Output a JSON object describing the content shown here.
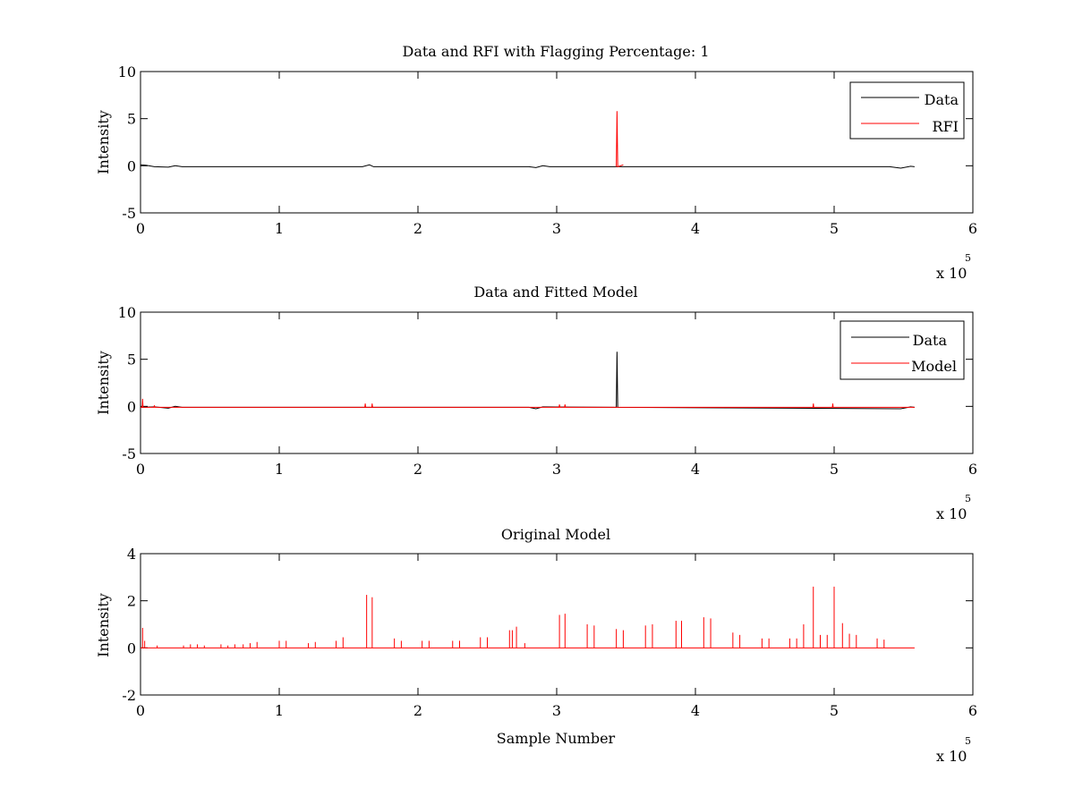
{
  "chart_data": [
    {
      "type": "line",
      "title": "Data and RFI with Flagging Percentage: 1",
      "xlabel": "",
      "ylabel": "Intensity",
      "xlim": [
        0,
        600000
      ],
      "ylim": [
        -5,
        10
      ],
      "x_ticks": [
        "0",
        "1",
        "2",
        "3",
        "4",
        "5",
        "6"
      ],
      "y_ticks": [
        "-5",
        "0",
        "5",
        "10"
      ],
      "x_exponent": "x 10",
      "x_exponent_power": "5",
      "grid": false,
      "legend_position": "top-right",
      "series": [
        {
          "name": "Data",
          "color": "#000000",
          "baseline": -0.1,
          "points": [
            [
              0,
              0.1
            ],
            [
              4000,
              0.05
            ],
            [
              10000,
              -0.1
            ],
            [
              20000,
              -0.15
            ],
            [
              25000,
              0.0
            ],
            [
              30000,
              -0.1
            ],
            [
              160000,
              -0.1
            ],
            [
              165000,
              0.1
            ],
            [
              168000,
              -0.1
            ],
            [
              280000,
              -0.1
            ],
            [
              285000,
              -0.2
            ],
            [
              290000,
              0.0
            ],
            [
              295000,
              -0.1
            ],
            [
              540000,
              -0.1
            ],
            [
              548000,
              -0.25
            ],
            [
              555000,
              -0.05
            ],
            [
              558000,
              -0.1
            ]
          ]
        },
        {
          "name": "RFI",
          "color": "#ff0000",
          "baseline": -0.1,
          "points": [
            [
              343000,
              -0.1
            ],
            [
              343500,
              5.8
            ],
            [
              344000,
              -0.1
            ],
            [
              348000,
              0.1
            ]
          ]
        }
      ]
    },
    {
      "type": "line",
      "title": "Data and Fitted Model",
      "xlabel": "",
      "ylabel": "Intensity",
      "xlim": [
        0,
        600000
      ],
      "ylim": [
        -5,
        10
      ],
      "x_ticks": [
        "0",
        "1",
        "2",
        "3",
        "4",
        "5",
        "6"
      ],
      "y_ticks": [
        "-5",
        "0",
        "5",
        "10"
      ],
      "x_exponent": "x 10",
      "x_exponent_power": "5",
      "grid": false,
      "legend_position": "top-right",
      "series": [
        {
          "name": "Data",
          "color": "#000000",
          "baseline": -0.1,
          "points": [
            [
              0,
              -0.1
            ],
            [
              10000,
              -0.05
            ],
            [
              20000,
              -0.2
            ],
            [
              25000,
              0.0
            ],
            [
              30000,
              -0.1
            ],
            [
              280000,
              -0.1
            ],
            [
              285000,
              -0.25
            ],
            [
              290000,
              -0.05
            ],
            [
              343000,
              -0.1
            ],
            [
              343500,
              5.8
            ],
            [
              344000,
              -0.1
            ],
            [
              548000,
              -0.25
            ],
            [
              555000,
              -0.05
            ]
          ]
        },
        {
          "name": "Model",
          "color": "#ff0000",
          "baseline": -0.1,
          "points": [
            [
              1500,
              0.8
            ],
            [
              3000,
              -0.1
            ],
            [
              10000,
              0.1
            ],
            [
              162000,
              0.3
            ],
            [
              167000,
              0.3
            ],
            [
              302000,
              0.2
            ],
            [
              306000,
              0.2
            ],
            [
              485000,
              0.3
            ],
            [
              499000,
              0.3
            ]
          ]
        }
      ]
    },
    {
      "type": "line",
      "title": "Original Model",
      "xlabel": "Sample Number",
      "ylabel": "Intensity",
      "xlim": [
        0,
        600000
      ],
      "ylim": [
        -2,
        4
      ],
      "x_ticks": [
        "0",
        "1",
        "2",
        "3",
        "4",
        "5",
        "6"
      ],
      "y_ticks": [
        "-2",
        "0",
        "2",
        "4"
      ],
      "x_exponent": "x 10",
      "x_exponent_power": "5",
      "grid": false,
      "legend_position": "none",
      "series": [
        {
          "color": "#ff0000",
          "baseline": 0,
          "x_end": 558000,
          "peaks": [
            [
              1500,
              0.85
            ],
            [
              3000,
              0.3
            ],
            [
              12000,
              0.1
            ],
            [
              31000,
              0.1
            ],
            [
              36000,
              0.15
            ],
            [
              41000,
              0.15
            ],
            [
              46000,
              0.1
            ],
            [
              58000,
              0.15
            ],
            [
              63000,
              0.1
            ],
            [
              68000,
              0.15
            ],
            [
              74000,
              0.15
            ],
            [
              79000,
              0.2
            ],
            [
              84000,
              0.25
            ],
            [
              100000,
              0.3
            ],
            [
              105000,
              0.3
            ],
            [
              121000,
              0.2
            ],
            [
              126000,
              0.25
            ],
            [
              141000,
              0.3
            ],
            [
              146000,
              0.45
            ],
            [
              163000,
              2.25
            ],
            [
              167000,
              2.15
            ],
            [
              183000,
              0.4
            ],
            [
              188000,
              0.3
            ],
            [
              203000,
              0.3
            ],
            [
              208000,
              0.3
            ],
            [
              225000,
              0.3
            ],
            [
              230000,
              0.3
            ],
            [
              245000,
              0.45
            ],
            [
              250000,
              0.45
            ],
            [
              266000,
              0.75
            ],
            [
              268000,
              0.75
            ],
            [
              271000,
              0.9
            ],
            [
              277000,
              0.2
            ],
            [
              302000,
              1.4
            ],
            [
              306000,
              1.45
            ],
            [
              322000,
              1.0
            ],
            [
              327000,
              0.95
            ],
            [
              343000,
              0.8
            ],
            [
              348000,
              0.75
            ],
            [
              364000,
              0.95
            ],
            [
              369000,
              1.0
            ],
            [
              386000,
              1.15
            ],
            [
              390000,
              1.15
            ],
            [
              406000,
              1.3
            ],
            [
              411000,
              1.25
            ],
            [
              427000,
              0.65
            ],
            [
              432000,
              0.55
            ],
            [
              448000,
              0.4
            ],
            [
              453000,
              0.4
            ],
            [
              468000,
              0.4
            ],
            [
              473000,
              0.4
            ],
            [
              478000,
              1.0
            ],
            [
              485000,
              2.6
            ],
            [
              490000,
              0.55
            ],
            [
              495000,
              0.55
            ],
            [
              500000,
              2.6
            ],
            [
              506000,
              1.05
            ],
            [
              511000,
              0.6
            ],
            [
              516000,
              0.55
            ],
            [
              531000,
              0.4
            ],
            [
              536000,
              0.35
            ]
          ]
        }
      ]
    }
  ]
}
